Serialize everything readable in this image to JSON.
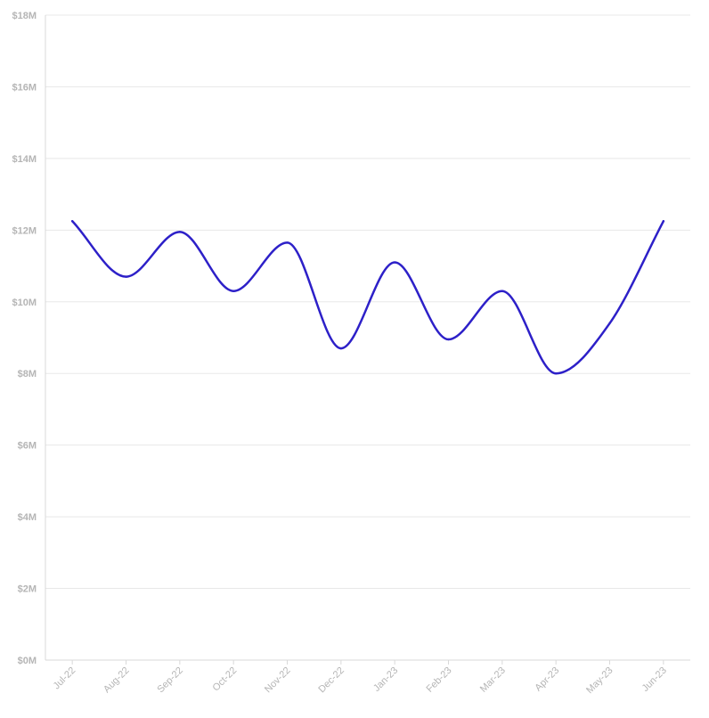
{
  "chart_data": {
    "type": "line",
    "title": "",
    "xlabel": "",
    "ylabel": "",
    "categories": [
      "Jul-22",
      "Aug-22",
      "Sep-22",
      "Oct-22",
      "Nov-22",
      "Dec-22",
      "Jan-23",
      "Feb-23",
      "Mar-23",
      "Apr-23",
      "May-23",
      "Jun-23"
    ],
    "y_ticks": [
      "$0M",
      "$2M",
      "$4M",
      "$6M",
      "$8M",
      "$10M",
      "$12M",
      "$14M",
      "$16M",
      "$18M"
    ],
    "ylim": [
      0,
      18
    ],
    "grid": true,
    "series": [
      {
        "values": [
          12.25,
          10.7,
          11.95,
          10.3,
          11.65,
          8.7,
          11.1,
          8.95,
          10.3,
          8.0,
          9.4,
          12.25
        ],
        "color": "#2d20c8"
      }
    ],
    "colors": {
      "grid": "#e8e8e8",
      "axis": "#d9d9d9",
      "tick_label": "#b5b5b5"
    }
  }
}
